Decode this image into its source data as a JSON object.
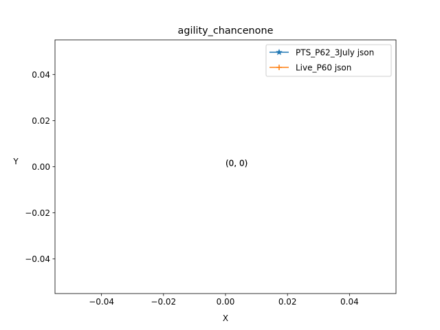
{
  "chart_data": {
    "type": "line",
    "title": "agility_chancenone",
    "xlabel": "X",
    "ylabel": "Y",
    "xlim": [
      -0.055,
      0.055
    ],
    "ylim": [
      -0.055,
      0.055
    ],
    "xticks": [
      -0.04,
      -0.02,
      0.0,
      0.02,
      0.04
    ],
    "xtick_labels": [
      "−0.04",
      "−0.02",
      "0.00",
      "0.02",
      "0.04"
    ],
    "yticks": [
      0.04,
      0.02,
      0.0,
      -0.02,
      -0.04
    ],
    "ytick_labels": [
      "0.04",
      "0.02",
      "0.00",
      "−0.02",
      "−0.04"
    ],
    "grid": false,
    "legend_position": "top-right",
    "series": [
      {
        "name": "PTS_P62_3July json",
        "color": "#1f77b4",
        "marker": "star",
        "x": [
          0
        ],
        "y": [
          0
        ]
      },
      {
        "name": "Live_P60 json",
        "color": "#ff7f0e",
        "marker": "plus",
        "x": [
          0
        ],
        "y": [
          0
        ]
      }
    ],
    "annotations": [
      {
        "text": "(0, 0)",
        "x": 0,
        "y": 0
      },
      {
        "text": "(0, 0)",
        "x": 0,
        "y": 0
      }
    ]
  }
}
